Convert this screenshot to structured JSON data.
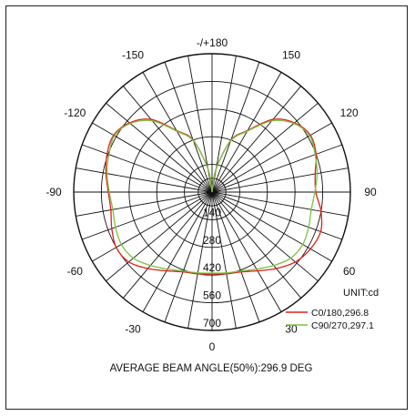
{
  "chart_data": {
    "type": "polar-line",
    "unit_label": "UNIT:cd",
    "footer": "AVERAGE BEAM ANGLE(50%):296.9 DEG",
    "radial_ticks": [
      "140",
      "280",
      "420",
      "560",
      "700"
    ],
    "r_max": 700,
    "angle_labels": [
      "-/+180",
      "150",
      "120",
      "90",
      "60",
      "30",
      "0",
      "-30",
      "-60",
      "-90",
      "-120",
      "-150"
    ],
    "angle_label_degrees": [
      180,
      150,
      120,
      90,
      60,
      30,
      0,
      -30,
      -60,
      -90,
      -120,
      -150
    ],
    "series": [
      {
        "name": "C0/180,296.8",
        "color": "#e0201a",
        "angles": [
          -180,
          -170,
          -160,
          -150,
          -140,
          -130,
          -120,
          -110,
          -100,
          -90,
          -80,
          -70,
          -60,
          -50,
          -40,
          -30,
          -20,
          -10,
          0,
          10,
          20,
          30,
          40,
          50,
          60,
          70,
          80,
          90,
          100,
          110,
          120,
          130,
          140,
          150,
          160,
          170,
          180
        ],
        "values": [
          0,
          120,
          280,
          360,
          480,
          545,
          575,
          565,
          545,
          525,
          520,
          540,
          560,
          550,
          505,
          460,
          430,
          420,
          415,
          420,
          430,
          460,
          505,
          550,
          575,
          585,
          560,
          525,
          530,
          560,
          575,
          545,
          480,
          360,
          280,
          120,
          0
        ]
      },
      {
        "name": "C90/270,297.1",
        "color": "#7cc242",
        "angles": [
          -180,
          -170,
          -160,
          -150,
          -140,
          -130,
          -120,
          -110,
          -100,
          -90,
          -80,
          -70,
          -60,
          -50,
          -40,
          -30,
          -20,
          -10,
          0,
          10,
          20,
          30,
          40,
          50,
          60,
          70,
          80,
          90,
          100,
          110,
          120,
          130,
          140,
          150,
          160,
          170,
          180
        ],
        "values": [
          0,
          120,
          275,
          355,
          470,
          540,
          570,
          555,
          540,
          520,
          510,
          520,
          530,
          520,
          485,
          450,
          425,
          415,
          410,
          415,
          425,
          450,
          485,
          520,
          530,
          520,
          510,
          520,
          540,
          555,
          570,
          540,
          470,
          355,
          275,
          120,
          0
        ]
      }
    ],
    "grid": true,
    "legend_position": "bottom-right"
  }
}
